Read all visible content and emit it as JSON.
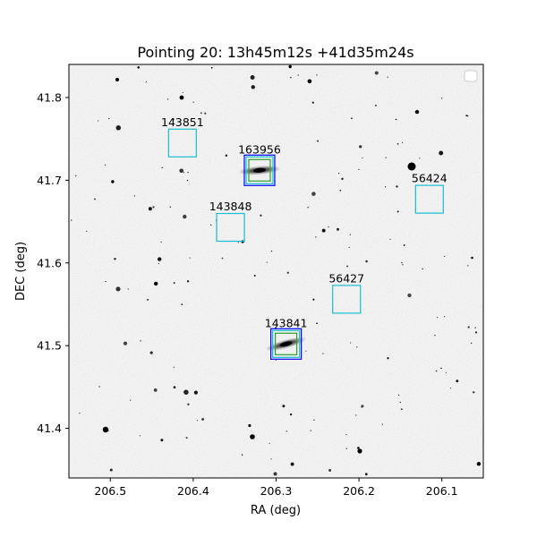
{
  "chart_data": {
    "type": "scatter",
    "title": "Pointing 20: 13h45m12s +41d35m24s",
    "xlabel": "RA (deg)",
    "ylabel": "DEC (deg)",
    "xlim": [
      206.55,
      206.05
    ],
    "ylim": [
      41.34,
      41.84
    ],
    "x_ticks": [
      206.5,
      206.4,
      206.3,
      206.2,
      206.1
    ],
    "x_tick_labels": [
      "206.5",
      "206.4",
      "206.3",
      "206.2",
      "206.1"
    ],
    "y_ticks": [
      41.4,
      41.5,
      41.6,
      41.7,
      41.8
    ],
    "y_tick_labels": [
      "41.4",
      "41.5",
      "41.6",
      "41.7",
      "41.8"
    ],
    "grid": false,
    "legend": "top-right (empty)",
    "background": "grayscale sky image (inverted)",
    "colors": {
      "cyan": "#17becf",
      "blue": "#0000ff",
      "green": "#2ca02c"
    },
    "sources": [
      {
        "id": "143851",
        "ra": 206.413,
        "dec": 41.745,
        "color": "cyan",
        "nested": false,
        "galaxy": false
      },
      {
        "id": "163956",
        "ra": 206.32,
        "dec": 41.712,
        "color": "cyan",
        "nested": true,
        "galaxy": true,
        "galaxy_angle": -5
      },
      {
        "id": "56424",
        "ra": 206.115,
        "dec": 41.677,
        "color": "cyan",
        "nested": false,
        "galaxy": false
      },
      {
        "id": "143848",
        "ra": 206.355,
        "dec": 41.643,
        "color": "cyan",
        "nested": false,
        "galaxy": false
      },
      {
        "id": "56427",
        "ra": 206.215,
        "dec": 41.556,
        "color": "cyan",
        "nested": false,
        "galaxy": false
      },
      {
        "id": "143841",
        "ra": 206.288,
        "dec": 41.502,
        "color": "cyan",
        "nested": true,
        "galaxy": true,
        "galaxy_angle": -15
      }
    ]
  }
}
